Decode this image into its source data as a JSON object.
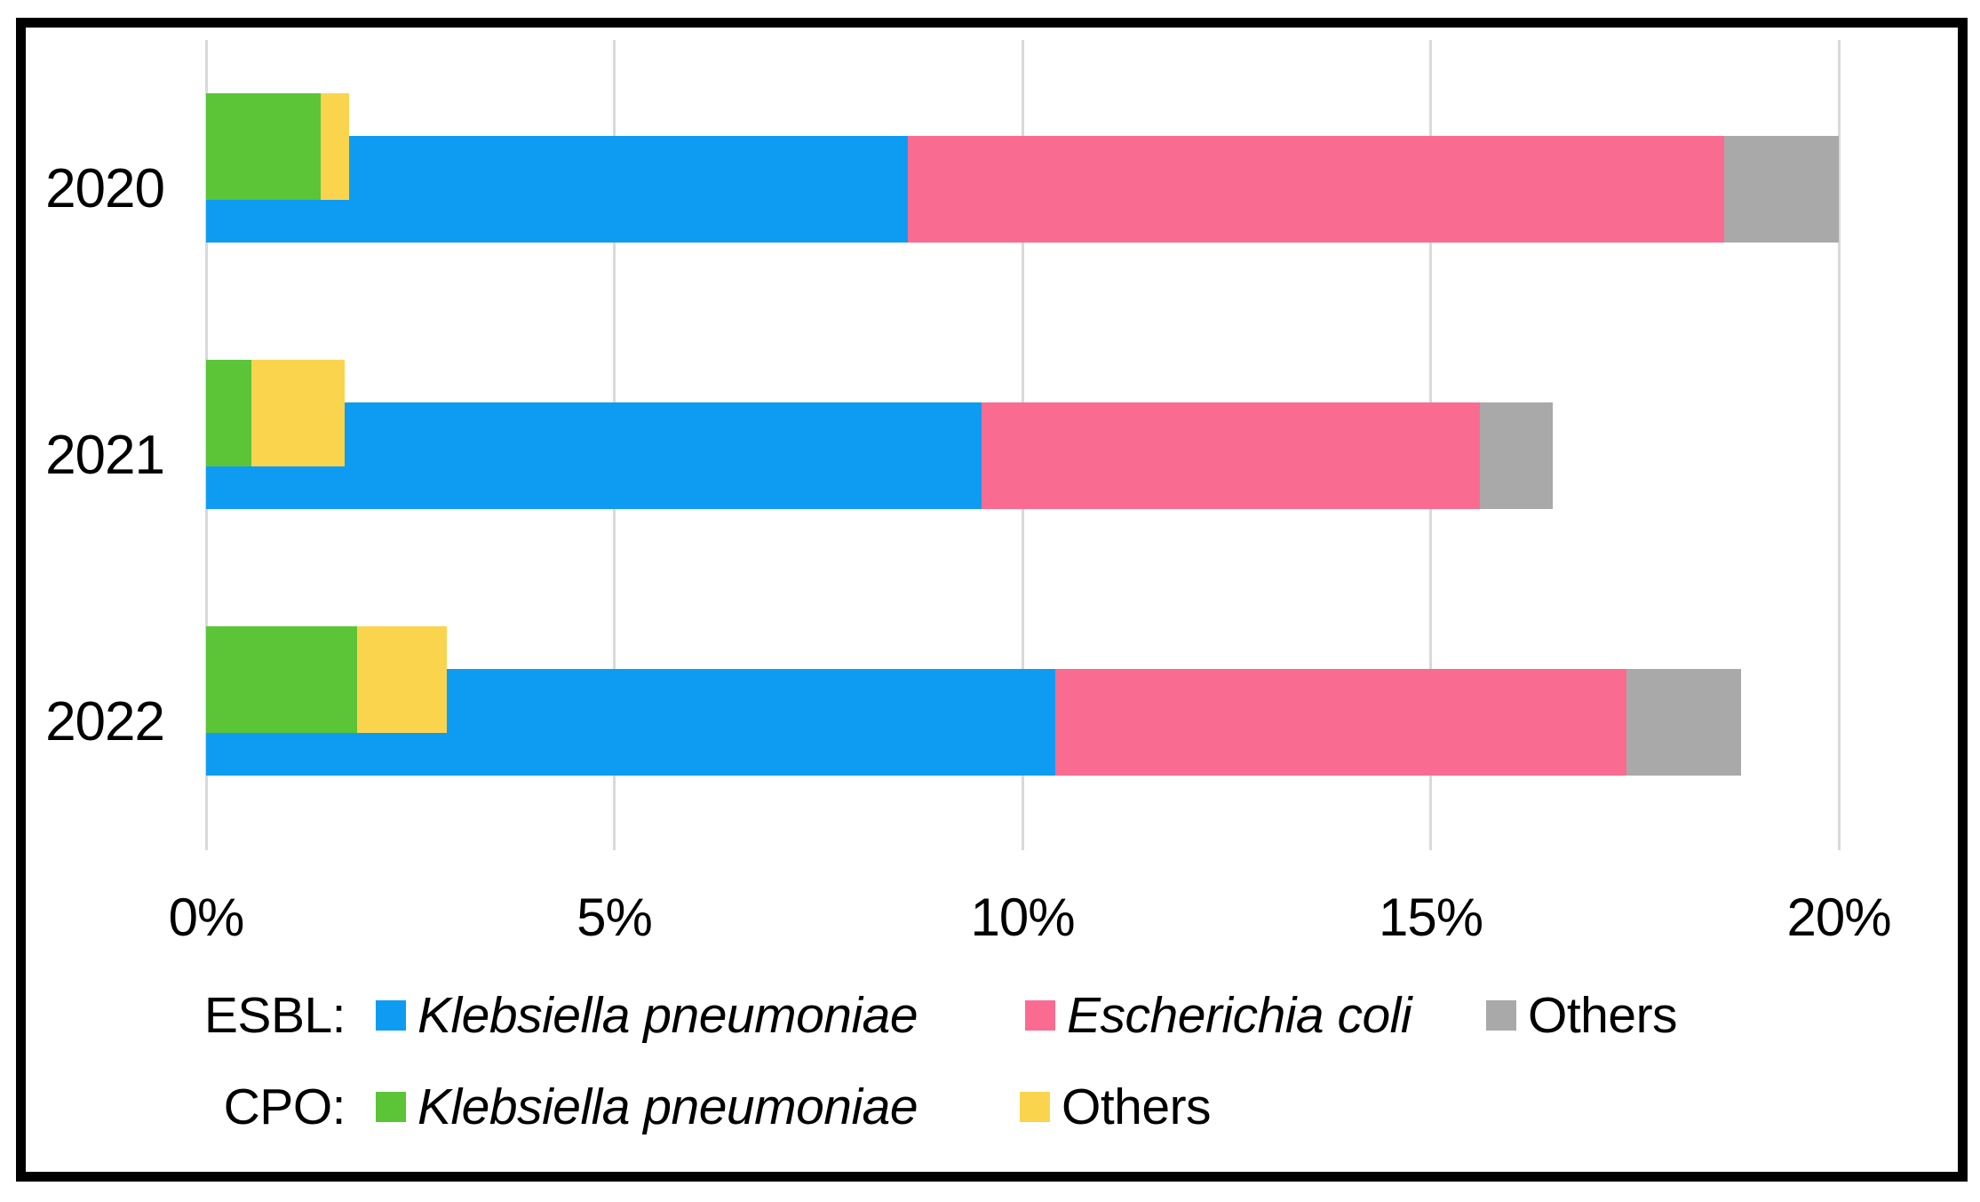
{
  "chart_data": {
    "type": "bar",
    "orientation": "horizontal",
    "title": "",
    "categories": [
      "2020",
      "2021",
      "2022"
    ],
    "x_axis": {
      "unit": "%",
      "range": [
        0,
        20
      ],
      "ticks": [
        {
          "label": "0%",
          "value": 0
        },
        {
          "label": "5%",
          "value": 5
        },
        {
          "label": "10%",
          "value": 10
        },
        {
          "label": "15%",
          "value": 15
        },
        {
          "label": "20%",
          "value": 20
        }
      ]
    },
    "grid": true,
    "legend_position": "bottom",
    "groups": [
      {
        "name": "ESBL",
        "series": [
          {
            "label": "Klebsiella pneumoniae",
            "color": "#0e9cf2",
            "values": [
              8.6,
              9.5,
              10.4
            ]
          },
          {
            "label": "Escherichia coli",
            "color": "#fa6b92",
            "values": [
              10.0,
              6.1,
              7.0
            ]
          },
          {
            "label": "Others",
            "color": "#a9a9a9",
            "values": [
              1.4,
              0.9,
              1.4
            ]
          }
        ],
        "totals": [
          20.0,
          16.5,
          18.8
        ]
      },
      {
        "name": "CPO",
        "series": [
          {
            "label": "Klebsiella pneumoniae",
            "color": "#5cc437",
            "values": [
              1.4,
              0.55,
              1.85
            ]
          },
          {
            "label": "Others",
            "color": "#fbd44e",
            "values": [
              0.35,
              1.15,
              1.1
            ]
          }
        ],
        "totals": [
          1.75,
          1.7,
          2.95
        ]
      }
    ]
  },
  "legend": {
    "rows": [
      {
        "group": "ESBL:",
        "items": [
          {
            "label": "Klebsiella pneumoniae",
            "italic": true,
            "color": "#0e9cf2"
          },
          {
            "label": "Escherichia coli",
            "italic": true,
            "color": "#fa6b92"
          },
          {
            "label": "Others",
            "italic": false,
            "color": "#a9a9a9"
          }
        ]
      },
      {
        "group": "CPO:",
        "items": [
          {
            "label": "Klebsiella pneumoniae",
            "italic": true,
            "color": "#5cc437"
          },
          {
            "label": "Others",
            "italic": false,
            "color": "#fbd44e"
          }
        ]
      }
    ]
  },
  "colors": {
    "esbl_klebsiella": "#0e9cf2",
    "esbl_ecoli": "#fa6b92",
    "esbl_others": "#a9a9a9",
    "cpo_klebsiella": "#5cc437",
    "cpo_others": "#fbd44e",
    "gridline": "#d9d9d9",
    "border": "#000000",
    "background": "#ffffff"
  }
}
